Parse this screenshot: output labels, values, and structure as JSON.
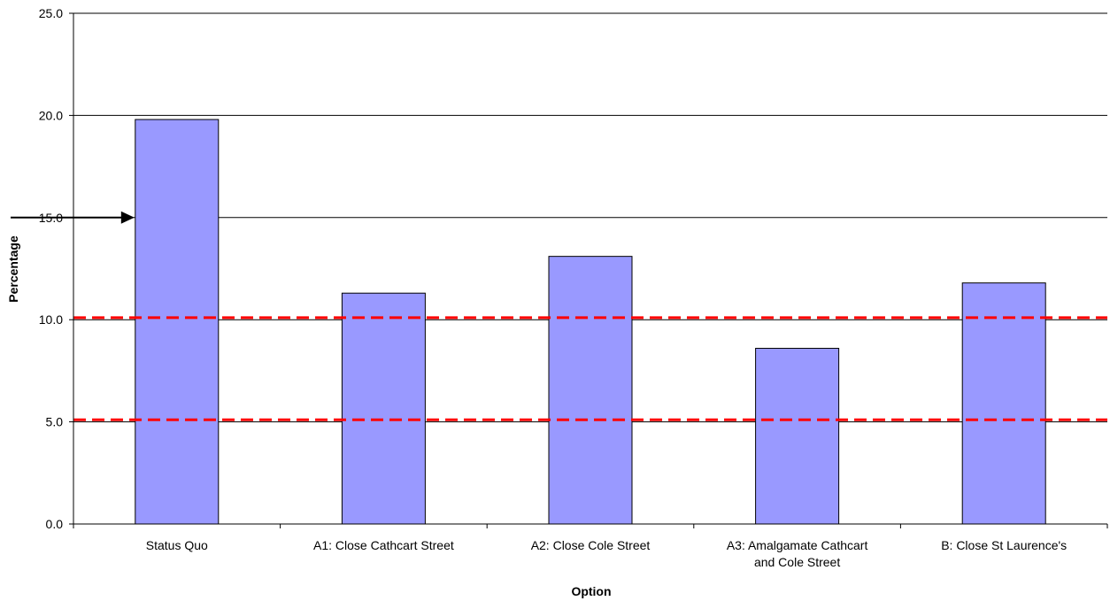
{
  "chart_data": {
    "type": "bar",
    "xlabel": "Option",
    "ylabel": "Percentage",
    "categories": [
      [
        "Status Quo"
      ],
      [
        "A1: Close Cathcart Street"
      ],
      [
        "A2: Close Cole Street"
      ],
      [
        "A3: Amalgamate Cathcart",
        "and Cole Street"
      ],
      [
        "B: Close St Laurence's"
      ]
    ],
    "values": [
      19.8,
      11.3,
      13.1,
      8.6,
      11.8
    ],
    "ylim": [
      0,
      25
    ],
    "yticks": [
      "0.0",
      "5.0",
      "10.0",
      "15.0",
      "20.0",
      "25.0"
    ],
    "grid": true,
    "reference_lines": [
      10.1,
      5.1
    ],
    "arrow_pointing_at": 15.0,
    "colors": {
      "bar_fill": "#9999ff",
      "bar_stroke": "#000000",
      "reference_line": "#ff0000",
      "grid": "#000000"
    }
  }
}
